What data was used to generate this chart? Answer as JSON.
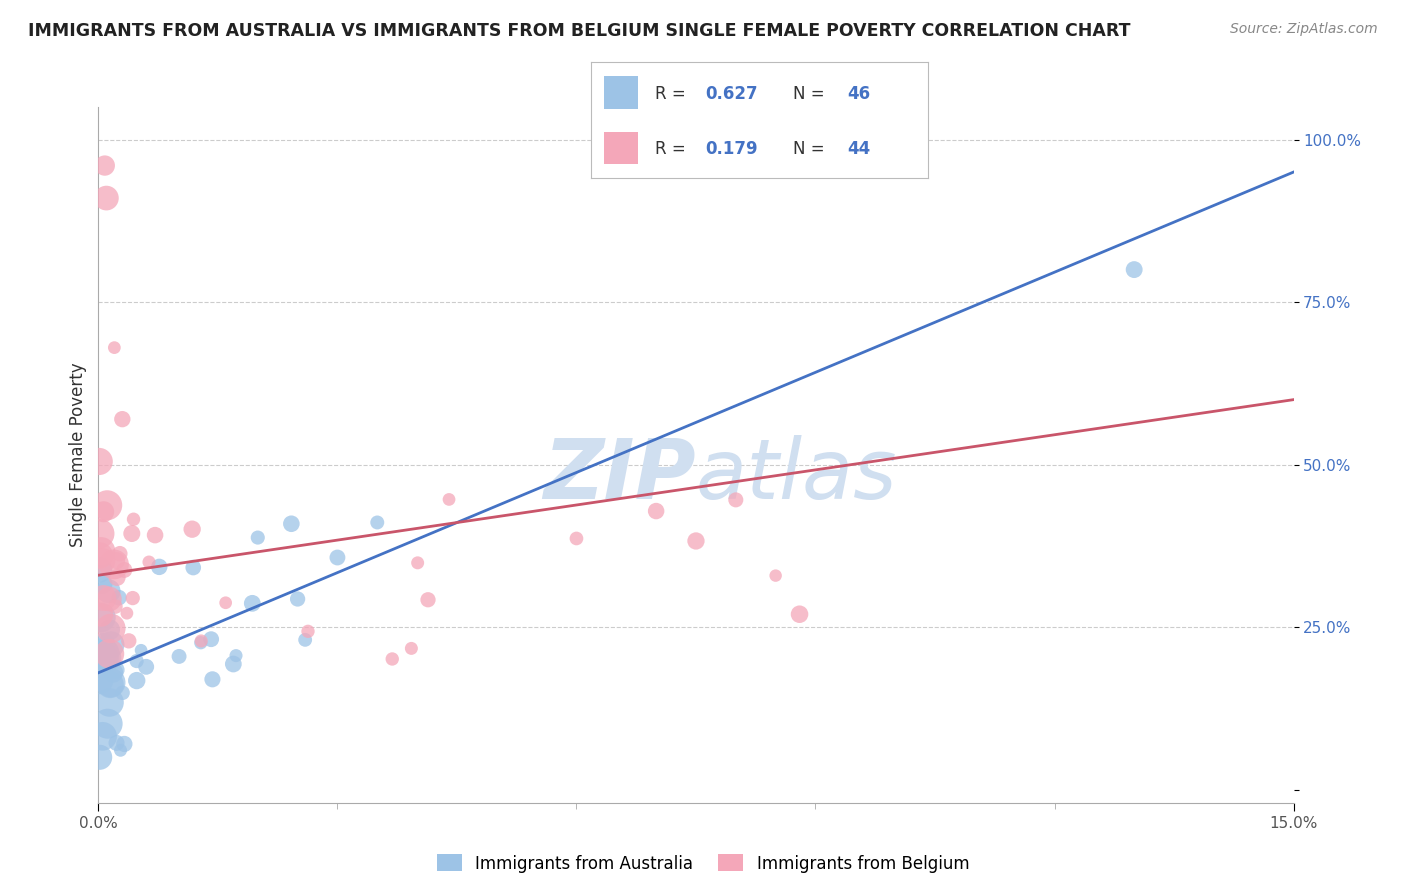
{
  "title": "IMMIGRANTS FROM AUSTRALIA VS IMMIGRANTS FROM BELGIUM SINGLE FEMALE POVERTY CORRELATION CHART",
  "source": "Source: ZipAtlas.com",
  "ylabel": "Single Female Poverty",
  "y_ticks": [
    0.0,
    0.25,
    0.5,
    0.75,
    1.0
  ],
  "y_tick_labels": [
    "",
    "25.0%",
    "50.0%",
    "75.0%",
    "100.0%"
  ],
  "x_min": 0.0,
  "x_max": 0.15,
  "y_min": -0.02,
  "y_max": 1.05,
  "R_australia": 0.627,
  "N_australia": 46,
  "R_belgium": 0.179,
  "N_belgium": 44,
  "australia_color": "#9DC3E6",
  "belgium_color": "#F4A7B9",
  "trend_australia_color": "#4472C4",
  "trend_belgium_color": "#C9556A",
  "watermark_color": "#D0DFF0",
  "legend_label_australia": "Immigrants from Australia",
  "legend_label_belgium": "Immigrants from Belgium",
  "trend_aus_x0": 0.0,
  "trend_aus_y0": 0.18,
  "trend_aus_x1": 0.15,
  "trend_aus_y1": 0.95,
  "trend_bel_x0": 0.0,
  "trend_bel_y0": 0.33,
  "trend_bel_x1": 0.15,
  "trend_bel_y1": 0.6,
  "marker_size": 100
}
